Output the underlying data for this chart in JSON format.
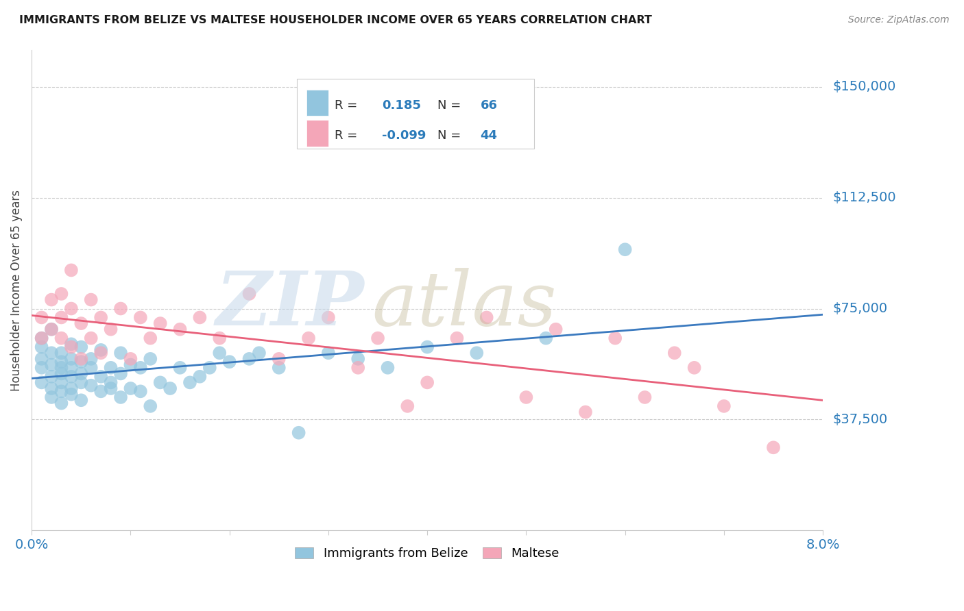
{
  "title": "IMMIGRANTS FROM BELIZE VS MALTESE HOUSEHOLDER INCOME OVER 65 YEARS CORRELATION CHART",
  "source": "Source: ZipAtlas.com",
  "ylabel": "Householder Income Over 65 years",
  "ytick_labels": [
    "$37,500",
    "$75,000",
    "$112,500",
    "$150,000"
  ],
  "ytick_values": [
    37500,
    75000,
    112500,
    150000
  ],
  "ylim": [
    0,
    162500
  ],
  "xlim": [
    0.0,
    0.08
  ],
  "legend_blue_r": "0.185",
  "legend_blue_n": "66",
  "legend_pink_r": "-0.099",
  "legend_pink_n": "44",
  "legend_label_blue": "Immigrants from Belize",
  "legend_label_pink": "Maltese",
  "blue_color": "#92c5de",
  "pink_color": "#f4a6b8",
  "blue_line_color": "#3b7abf",
  "pink_line_color": "#e8607a",
  "title_color": "#1a1a1a",
  "axis_label_color": "#2b7bba",
  "r_n_color": "#2b7bba",
  "label_color": "#333333",
  "grid_color": "#cccccc",
  "background_color": "#ffffff",
  "blue_scatter_x": [
    0.001,
    0.001,
    0.001,
    0.001,
    0.001,
    0.002,
    0.002,
    0.002,
    0.002,
    0.002,
    0.002,
    0.003,
    0.003,
    0.003,
    0.003,
    0.003,
    0.003,
    0.003,
    0.004,
    0.004,
    0.004,
    0.004,
    0.004,
    0.004,
    0.005,
    0.005,
    0.005,
    0.005,
    0.005,
    0.006,
    0.006,
    0.006,
    0.007,
    0.007,
    0.007,
    0.008,
    0.008,
    0.008,
    0.009,
    0.009,
    0.009,
    0.01,
    0.01,
    0.011,
    0.011,
    0.012,
    0.012,
    0.013,
    0.014,
    0.015,
    0.016,
    0.017,
    0.018,
    0.019,
    0.02,
    0.022,
    0.023,
    0.025,
    0.027,
    0.03,
    0.033,
    0.036,
    0.04,
    0.045,
    0.052,
    0.06
  ],
  "blue_scatter_y": [
    58000,
    62000,
    55000,
    50000,
    65000,
    52000,
    48000,
    60000,
    56000,
    45000,
    68000,
    50000,
    55000,
    43000,
    47000,
    60000,
    53000,
    57000,
    48000,
    52000,
    58000,
    63000,
    46000,
    55000,
    50000,
    44000,
    57000,
    62000,
    53000,
    55000,
    49000,
    58000,
    47000,
    52000,
    61000,
    48000,
    55000,
    50000,
    53000,
    60000,
    45000,
    48000,
    56000,
    55000,
    47000,
    58000,
    42000,
    50000,
    48000,
    55000,
    50000,
    52000,
    55000,
    60000,
    57000,
    58000,
    60000,
    55000,
    33000,
    60000,
    58000,
    55000,
    62000,
    60000,
    65000,
    95000
  ],
  "pink_scatter_x": [
    0.001,
    0.001,
    0.002,
    0.002,
    0.003,
    0.003,
    0.003,
    0.004,
    0.004,
    0.004,
    0.005,
    0.005,
    0.006,
    0.006,
    0.007,
    0.007,
    0.008,
    0.009,
    0.01,
    0.011,
    0.012,
    0.013,
    0.015,
    0.017,
    0.019,
    0.022,
    0.025,
    0.028,
    0.03,
    0.033,
    0.035,
    0.038,
    0.04,
    0.043,
    0.046,
    0.05,
    0.053,
    0.056,
    0.059,
    0.062,
    0.065,
    0.067,
    0.07,
    0.075
  ],
  "pink_scatter_y": [
    72000,
    65000,
    78000,
    68000,
    80000,
    72000,
    65000,
    88000,
    75000,
    62000,
    70000,
    58000,
    78000,
    65000,
    72000,
    60000,
    68000,
    75000,
    58000,
    72000,
    65000,
    70000,
    68000,
    72000,
    65000,
    80000,
    58000,
    65000,
    72000,
    55000,
    65000,
    42000,
    50000,
    65000,
    72000,
    45000,
    68000,
    40000,
    65000,
    45000,
    60000,
    55000,
    42000,
    28000
  ]
}
